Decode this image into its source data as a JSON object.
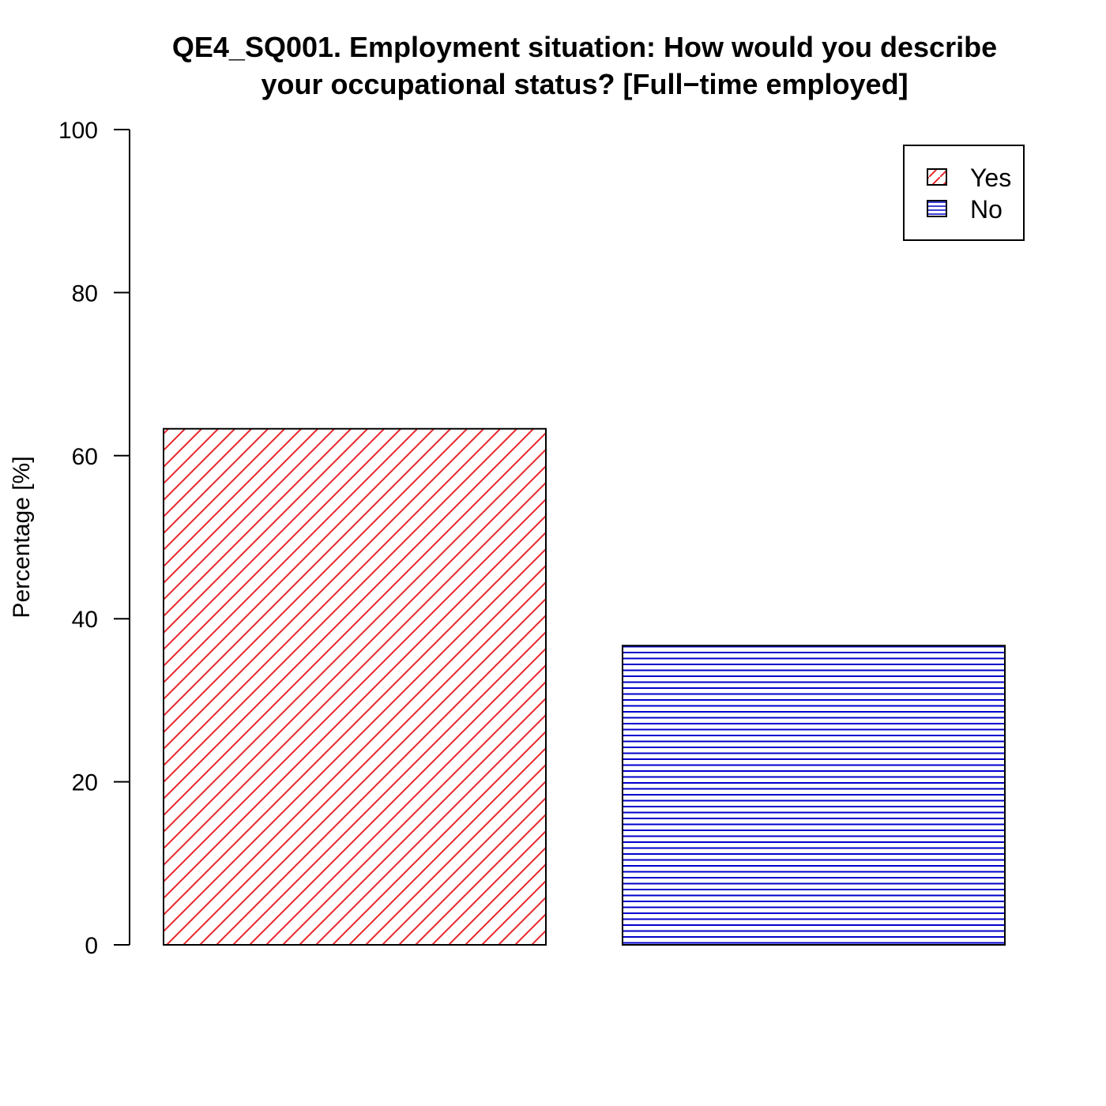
{
  "chart_data": {
    "type": "bar",
    "title_lines": [
      "QE4_SQ001. Employment situation: How would you describe",
      "your occupational status?  [Full−time employed]"
    ],
    "ylabel": "Percentage [%]",
    "xlabel": "",
    "ylim": [
      0,
      100
    ],
    "yticks": [
      "0",
      "20",
      "40",
      "60",
      "80",
      "100"
    ],
    "ytick_values": [
      0,
      20,
      40,
      60,
      80,
      100
    ],
    "categories": [
      "Yes",
      "No"
    ],
    "values": [
      63.3,
      36.7
    ],
    "series": [
      {
        "name": "Yes",
        "value": 63.3,
        "color": "#e8262b",
        "pattern": "diagonal"
      },
      {
        "name": "No",
        "value": 36.7,
        "color": "#0000cc",
        "pattern": "horizontal"
      }
    ],
    "legend": {
      "placement": "top-right",
      "entries": [
        "Yes",
        "No"
      ]
    },
    "grid": false
  }
}
